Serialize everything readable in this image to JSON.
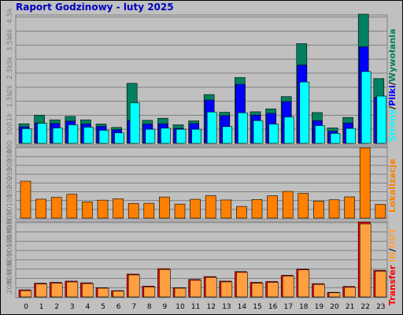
{
  "window": {
    "title": "Raport Godzinowy -  luty 2025"
  },
  "colors": {
    "background": "#c0c0c0",
    "panel": "#c0c0c0",
    "hits": "#008060",
    "files": "#0000ff",
    "pages": "#00ffff",
    "locations": "#ff8000",
    "transfer_in": "#ff0000",
    "transfer_out": "#ffa040",
    "title": "#0000c0"
  },
  "legend": {
    "top": {
      "pages": "Strony",
      "files": "Pliki",
      "hits": "Wywołania",
      "sep": "/"
    },
    "middle": {
      "locations": "Lokalizacje"
    },
    "bottom": {
      "transfer": "Transfer",
      "in": "IN",
      "out": "OUT",
      "sep": "/"
    }
  },
  "chart_data": [
    {
      "type": "bar",
      "categories": [
        "0",
        "1",
        "2",
        "3",
        "4",
        "5",
        "6",
        "7",
        "8",
        "9",
        "10",
        "11",
        "12",
        "13",
        "14",
        "15",
        "16",
        "17",
        "18",
        "19",
        "20",
        "21",
        "22",
        "23"
      ],
      "series": [
        {
          "name": "Wywołania",
          "values": [
            750,
            1080,
            900,
            1030,
            900,
            740,
            610,
            2300,
            880,
            960,
            710,
            860,
            1870,
            1190,
            2520,
            1210,
            1320,
            1790,
            3820,
            1180,
            590,
            990,
            4950,
            2480
          ]
        },
        {
          "name": "Pliki",
          "values": [
            630,
            780,
            760,
            850,
            740,
            650,
            520,
            870,
            740,
            750,
            570,
            760,
            1660,
            1060,
            2260,
            1080,
            1150,
            1600,
            3000,
            870,
            460,
            780,
            3700,
            1760
          ]
        },
        {
          "name": "Strony",
          "values": [
            560,
            770,
            590,
            710,
            620,
            500,
            400,
            1550,
            540,
            580,
            540,
            540,
            1200,
            640,
            1170,
            870,
            740,
            1010,
            2350,
            680,
            380,
            570,
            2750,
            1810
          ]
        }
      ],
      "yticks": [
        "500",
        "1k",
        "1.5k",
        "2k",
        "2.5k",
        "3k",
        "3.5k",
        "4k",
        "4.5k"
      ],
      "ylim": [
        0,
        4920
      ]
    },
    {
      "type": "bar",
      "categories": [
        "0",
        "1",
        "2",
        "3",
        "4",
        "5",
        "6",
        "7",
        "8",
        "9",
        "10",
        "11",
        "12",
        "13",
        "14",
        "15",
        "16",
        "17",
        "18",
        "19",
        "20",
        "21",
        "22",
        "23"
      ],
      "series": [
        {
          "name": "Lokalizacje",
          "values": [
            224,
            115,
            126,
            145,
            98,
            109,
            117,
            89,
            90,
            128,
            85,
            114,
            136,
            110,
            71,
            113,
            135,
            162,
            150,
            103,
            111,
            129,
            425,
            83
          ]
        }
      ],
      "yticks": [
        "50",
        "100",
        "150",
        "200",
        "250",
        "300",
        "350",
        "400"
      ],
      "ylim": [
        0,
        434
      ]
    },
    {
      "type": "bar",
      "categories": [
        "0",
        "1",
        "2",
        "3",
        "4",
        "5",
        "6",
        "7",
        "8",
        "9",
        "10",
        "11",
        "12",
        "13",
        "14",
        "15",
        "16",
        "17",
        "18",
        "19",
        "20",
        "21",
        "22",
        "23"
      ],
      "series": [
        {
          "name": "IN",
          "values": [
            17,
            33,
            35,
            38,
            34,
            22,
            15,
            55,
            26,
            68,
            22,
            42,
            49,
            38,
            61,
            35,
            37,
            52,
            67,
            32,
            11,
            25,
            180,
            64
          ]
        },
        {
          "name": "OUT",
          "values": [
            15,
            31,
            33,
            36,
            32,
            21,
            14,
            53,
            24,
            66,
            21,
            40,
            47,
            36,
            59,
            33,
            35,
            50,
            65,
            30,
            10,
            23,
            176,
            62
          ]
        }
      ],
      "yticks": [
        "20M",
        "40M",
        "60M",
        "80M",
        "100M",
        "120M",
        "140M",
        "160M"
      ],
      "ylim": [
        0,
        182
      ]
    }
  ]
}
